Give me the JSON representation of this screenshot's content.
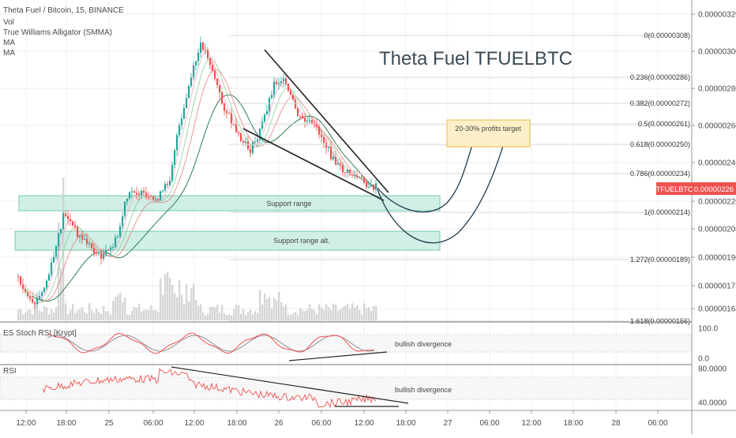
{
  "legend": {
    "symbol": "Theta Fuel / Bitcoin, 15, BINANCE",
    "indicators": [
      "Vol",
      "True Williams Alligator (SMMA)",
      "MA",
      "MA"
    ]
  },
  "title": "Theta Fuel TFUELBTC",
  "price_axis": {
    "ticks": [
      "0.00000320",
      "0.00000300",
      "0.00000280",
      "0.00000260",
      "0.00000240",
      "0.00000220",
      "0.00000205",
      "0.00000190",
      "0.00000175",
      "0.00000163"
    ],
    "current": {
      "label": "TFUELBTC",
      "value": "0.00000226",
      "color": "#ef5350"
    }
  },
  "time_axis": {
    "ticks": [
      "12:00",
      "18:00",
      "25",
      "06:00",
      "12:00",
      "18:00",
      "26",
      "06:00",
      "12:00",
      "18:00",
      "27",
      "06:00",
      "12:00",
      "18:00",
      "28",
      "06:00"
    ]
  },
  "fib_levels": [
    {
      "label": "0(0.00000308)",
      "value": 3.08e-06
    },
    {
      "label": "0.236(0.00000286)",
      "value": 2.86e-06
    },
    {
      "label": "0.382(0.00000272)",
      "value": 2.72e-06
    },
    {
      "label": "0.5(0.00000261)",
      "value": 2.61e-06
    },
    {
      "label": "0.618(0.00000250)",
      "value": 2.5e-06
    },
    {
      "label": "0.786(0.00000234)",
      "value": 2.34e-06
    },
    {
      "label": "1(0.00000214)",
      "value": 2.14e-06
    },
    {
      "label": "1.272(0.00000189)",
      "value": 1.89e-06
    },
    {
      "label": "1.618(0.00000156)",
      "value": 1.56e-06
    }
  ],
  "annotations": {
    "support": "Support range",
    "support_alt": "Support range alt.",
    "target": "20-30% profits target"
  },
  "stoch": {
    "name": "ES Stoch RSI [Krypt]",
    "ticks": [
      "100.0",
      "0.0"
    ],
    "note": "bullish divergence"
  },
  "rsi": {
    "name": "RSI",
    "ticks": [
      "80.0000",
      "40.0000"
    ],
    "note": "bullish divergence"
  },
  "colors": {
    "up": "#26a69a",
    "down": "#ef5350",
    "support_fill": "#c8ede2",
    "support_stroke": "#5fbf9f",
    "target_fill": "#fdf0c8",
    "target_stroke": "#e8b84a",
    "volume": "#cfcfcf",
    "stoch_line": "#ef5350",
    "rsi_line": "#ef5350",
    "trend": "#222222",
    "curve": "#1f3b4d"
  },
  "chart_data": {
    "type": "line",
    "title": "Theta Fuel TFUELBTC",
    "xlabel": "",
    "ylabel": "",
    "series": [
      {
        "name": "TFUELBTC",
        "x": [
          "24 12:00",
          "24 15:00",
          "24 18:00",
          "24 21:00",
          "25 00:00",
          "25 03:00",
          "25 06:00",
          "25 09:00",
          "25 12:00",
          "25 15:00",
          "25 18:00",
          "25 21:00",
          "26 00:00",
          "26 03:00",
          "26 06:00",
          "26 09:00",
          "26 12:00"
        ],
        "values": [
          1.65e-06,
          1.95e-06,
          2.05e-06,
          1.98e-06,
          1.95e-06,
          2.15e-06,
          2.25e-06,
          2.9e-06,
          3e-06,
          2.62e-06,
          2.55e-06,
          2.85e-06,
          2.65e-06,
          2.6e-06,
          2.45e-06,
          2.32e-06,
          2.26e-06
        ]
      }
    ],
    "ylim": [
      1.55e-06,
      3.28e-06
    ],
    "grid": true,
    "legend_position": "top-left"
  }
}
